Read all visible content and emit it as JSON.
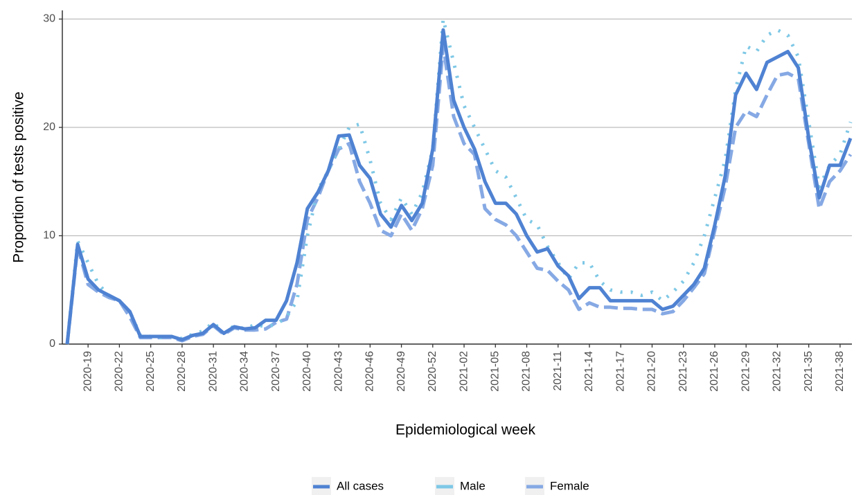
{
  "chart_data": {
    "type": "line",
    "x_label": "Epidemiological week",
    "y_label": "Proportion of tests positive",
    "categories": [
      null,
      null,
      "2020-19",
      null,
      null,
      "2020-22",
      null,
      null,
      "2020-25",
      null,
      null,
      "2020-28",
      null,
      null,
      "2020-31",
      null,
      null,
      "2020-34",
      null,
      null,
      "2020-37",
      null,
      null,
      "2020-40",
      null,
      null,
      "2020-43",
      null,
      null,
      "2020-46",
      null,
      null,
      "2020-49",
      null,
      null,
      "2020-52",
      null,
      null,
      "2021-02",
      null,
      null,
      "2021-05",
      null,
      null,
      "2021-08",
      null,
      null,
      "2021-11",
      null,
      null,
      "2021-14",
      null,
      null,
      "2021-17",
      null,
      null,
      "2021-20",
      null,
      null,
      "2021-23",
      null,
      null,
      "2021-26",
      null,
      null,
      "2021-29",
      null,
      null,
      "2021-32",
      null,
      null,
      "2021-35",
      null,
      null,
      "2021-38",
      null
    ],
    "series": [
      {
        "name": "All cases",
        "color": "#4f82d2",
        "style": "solid",
        "values": [
          0,
          9.2,
          6,
          5,
          4.5,
          4,
          3,
          0.7,
          0.7,
          0.7,
          0.7,
          0.4,
          0.8,
          1,
          1.8,
          1,
          1.6,
          1.4,
          1.5,
          2.2,
          2.2,
          4,
          7.5,
          12.5,
          14,
          16,
          19.2,
          19.3,
          16.5,
          15.3,
          12,
          10.8,
          12.8,
          11.4,
          13,
          18,
          29,
          22.5,
          20,
          18,
          15,
          13,
          13,
          12,
          10,
          8.5,
          8.8,
          7.2,
          6.3,
          4.2,
          5.2,
          5.2,
          4,
          4,
          4,
          4,
          4,
          3.2,
          3.5,
          4.5,
          5.5,
          7,
          11,
          15.5,
          23,
          25,
          23.5,
          26,
          26.5,
          27,
          25.5,
          19,
          13.5,
          16.5,
          16.5,
          19
        ]
      },
      {
        "name": "Male",
        "color": "#7ec8e6",
        "style": "dotted",
        "values": [
          0,
          9.5,
          7.5,
          5.5,
          4.5,
          4,
          3,
          0.8,
          0.7,
          0.6,
          0.7,
          0.5,
          0.9,
          1.2,
          2,
          1,
          1.7,
          1.4,
          1.8,
          1.6,
          1.8,
          2.5,
          4,
          10,
          14.2,
          16,
          18,
          20,
          20.3,
          17,
          13,
          11.5,
          13.5,
          12,
          14,
          18,
          30,
          26,
          22,
          20,
          18,
          16,
          15.4,
          13.5,
          11.5,
          11,
          9,
          7.5,
          6,
          7.5,
          7.5,
          5.8,
          5,
          4.8,
          4.8,
          4.5,
          4.8,
          4,
          4.8,
          5.8,
          7.5,
          10,
          13.5,
          17,
          23.5,
          27.5,
          27,
          28.5,
          29,
          28.5,
          26.5,
          20.5,
          14.5,
          16.5,
          17.5,
          20.5
        ]
      },
      {
        "name": "Female",
        "color": "#86a9e4",
        "style": "dashed",
        "values": [
          0,
          9,
          5.5,
          4.8,
          4.3,
          4,
          2.5,
          0.6,
          0.6,
          0.6,
          0.6,
          0.3,
          0.7,
          0.9,
          1.7,
          0.9,
          1.5,
          1.3,
          1.3,
          1.4,
          2,
          2.3,
          5.5,
          11.5,
          13.5,
          16,
          18,
          18.5,
          15,
          13,
          10.5,
          10,
          12,
          10.5,
          12.5,
          16.5,
          27.5,
          21,
          18.5,
          17.5,
          12.5,
          11.5,
          11,
          10,
          8.5,
          7,
          6.8,
          5.8,
          5,
          3.2,
          3.8,
          3.4,
          3.4,
          3.3,
          3.3,
          3.2,
          3.2,
          2.8,
          3,
          4,
          5.2,
          6.5,
          10.5,
          14.5,
          20,
          21.5,
          21,
          23,
          24.8,
          25,
          24.5,
          18.5,
          12.5,
          15,
          16,
          17.5
        ]
      }
    ],
    "ylim": [
      0,
      30.8
    ],
    "yticks": [
      0,
      10,
      20,
      30
    ],
    "grid": true,
    "legend": "bottom"
  }
}
